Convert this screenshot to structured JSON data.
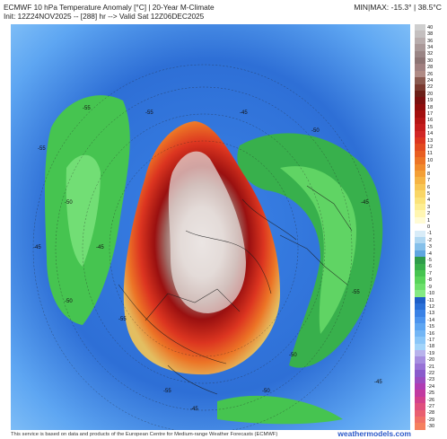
{
  "header": {
    "title": "ECMWF 10 hPa Temperature Anomaly [°C] | 20-Year M-Climate",
    "init_line": "Init: 12Z24NOV2025 -- [288] hr --> Valid Sat 12Z06DEC2025",
    "minmax": "MIN|MAX: -15.3° | 38.5°C"
  },
  "colorbar": {
    "ticks": [
      "40",
      "38",
      "36",
      "34",
      "32",
      "30",
      "28",
      "26",
      "24",
      "22",
      "20",
      "19",
      "18",
      "17",
      "16",
      "15",
      "14",
      "13",
      "12",
      "11",
      "10",
      "9",
      "8",
      "7",
      "6",
      "5",
      "4",
      "3",
      "2",
      "1",
      "0",
      "-1",
      "-2",
      "-3",
      "-4",
      "-5",
      "-6",
      "-7",
      "-8",
      "-9",
      "-10",
      "-11",
      "-12",
      "-13",
      "-14",
      "-15",
      "-16",
      "-17",
      "-18",
      "-19",
      "-20",
      "-21",
      "-22",
      "-23",
      "-24",
      "-25",
      "-26",
      "-27",
      "-28",
      "-29",
      "-30"
    ],
    "colors": [
      "#cfcfcf",
      "#c4bfbf",
      "#b8acac",
      "#a99898",
      "#9a8585",
      "#8d7474",
      "#a08080",
      "#b08b85",
      "#8a5a50",
      "#7a3a30",
      "#6b1f18",
      "#7a1010",
      "#8f0d0d",
      "#a30f0f",
      "#b51515",
      "#c41c1c",
      "#d12626",
      "#dc3520",
      "#e24a20",
      "#e85e22",
      "#ec7426",
      "#f08a2c",
      "#f39f36",
      "#f5b444",
      "#f7c654",
      "#f9d666",
      "#fbe37a",
      "#fdee92",
      "#fff6b2",
      "#fffbd5",
      "#ffffff",
      "#d8ecf8",
      "#b0d8f2",
      "#85c0ea",
      "#5fa6e0",
      "#2e9c4a",
      "#38b04c",
      "#46c450",
      "#58d45a",
      "#6de06c",
      "#84ea84",
      "#1e5fc8",
      "#2a70d8",
      "#3a82e6",
      "#4c94ee",
      "#5ea6f2",
      "#73b6f5",
      "#8ac6f8",
      "#a2d4fa",
      "#b8b2ec",
      "#a68ee0",
      "#9872d6",
      "#8a5acb",
      "#9b4cc1",
      "#b03cb3",
      "#c23aa0",
      "#d2408c",
      "#df4f7e",
      "#e95f70",
      "#f07066",
      "#f5805f"
    ]
  },
  "map_labels": [
    "-55",
    "-50",
    "-45",
    "-55",
    "-45",
    "-50",
    "-55",
    "-45",
    "-50",
    "-45",
    "-55",
    "-50",
    "-45",
    "-55",
    "-50",
    "-45",
    "-55"
  ],
  "footer": {
    "credit": "This service is based on data and products of the European Centre for Medium-range Weather Forecasts (ECMWF)",
    "brand": "weathermodels.com"
  }
}
